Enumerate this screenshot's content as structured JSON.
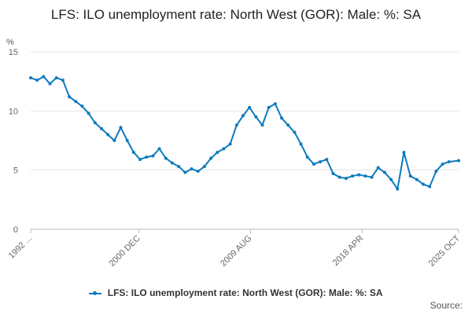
{
  "chart_data": {
    "type": "line",
    "title": "LFS: ILO unemployment rate: North West (GOR): Male: %: SA",
    "ylabel": "%",
    "xlabel": "",
    "ylim": [
      0,
      15
    ],
    "yticks": [
      0,
      5,
      10,
      15
    ],
    "xticks": [
      "1992 ...",
      "2000 DEC",
      "2009 AUG",
      "2018 APR",
      "2025 OCT"
    ],
    "grid": true,
    "legend_position": "bottom",
    "series": [
      {
        "name": "LFS: ILO unemployment rate: North West (GOR): Male: %: SA",
        "color": "#0e7abd",
        "x": [
          1992.5,
          1993.0,
          1993.5,
          1994.0,
          1994.5,
          1995.0,
          1995.5,
          1996.0,
          1996.5,
          1997.0,
          1997.5,
          1998.0,
          1998.5,
          1999.0,
          1999.5,
          2000.0,
          2000.5,
          2001.0,
          2001.5,
          2002.0,
          2002.5,
          2003.0,
          2003.5,
          2004.0,
          2004.5,
          2005.0,
          2005.5,
          2006.0,
          2006.5,
          2007.0,
          2007.5,
          2008.0,
          2008.5,
          2009.0,
          2009.5,
          2010.0,
          2010.5,
          2011.0,
          2011.5,
          2012.0,
          2012.5,
          2013.0,
          2013.5,
          2014.0,
          2014.5,
          2015.0,
          2015.5,
          2016.0,
          2016.5,
          2017.0,
          2017.5,
          2018.0,
          2018.5,
          2019.0,
          2019.5,
          2020.0,
          2020.5,
          2021.0,
          2021.5,
          2022.0,
          2022.5,
          2023.0,
          2023.5,
          2024.0,
          2024.5,
          2025.0,
          2025.75
        ],
        "values": [
          12.8,
          12.6,
          12.9,
          12.3,
          12.8,
          12.6,
          11.2,
          10.8,
          10.4,
          9.8,
          9.0,
          8.5,
          8.0,
          7.5,
          8.6,
          7.5,
          6.5,
          5.9,
          6.1,
          6.2,
          6.8,
          6.0,
          5.6,
          5.3,
          4.8,
          5.1,
          4.9,
          5.3,
          6.0,
          6.5,
          6.8,
          7.2,
          8.8,
          9.6,
          10.3,
          9.5,
          8.8,
          10.3,
          10.6,
          9.4,
          8.8,
          8.2,
          7.2,
          6.1,
          5.5,
          5.7,
          5.9,
          4.7,
          4.4,
          4.3,
          4.5,
          4.6,
          4.5,
          4.4,
          5.2,
          4.8,
          4.2,
          3.4,
          6.5,
          4.5,
          4.2,
          3.8,
          3.6,
          4.9,
          5.5,
          5.7,
          5.8
        ]
      }
    ]
  },
  "source_label": "Source:"
}
